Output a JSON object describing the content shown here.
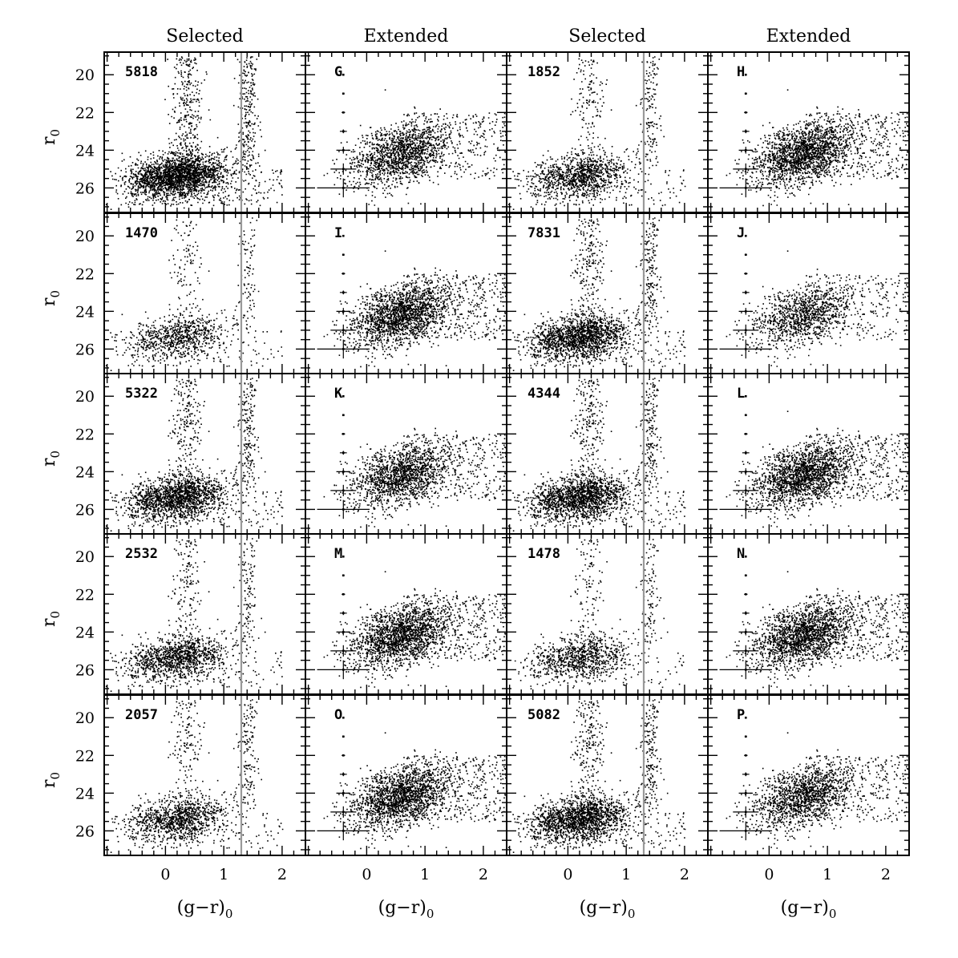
{
  "figure": {
    "column_titles": [
      "Selected",
      "Extended",
      "Selected",
      "Extended"
    ],
    "xlabel": "(g−r)",
    "xlabel_sub": "0",
    "ylabel": "r",
    "ylabel_sub": "0",
    "x_tick_labels": [
      "0",
      "1",
      "2"
    ],
    "y_tick_labels": [
      "20",
      "22",
      "24",
      "26"
    ]
  },
  "chart_data": {
    "type": "scatter",
    "title": "",
    "xlabel": "(g−r)0",
    "ylabel": "r0",
    "xlim": [
      -1.05,
      2.4
    ],
    "ylim": [
      27.3,
      18.8
    ],
    "x_ticks": [
      0,
      1,
      2
    ],
    "y_ticks": [
      20,
      22,
      24,
      26
    ],
    "y_axis_inverted": true,
    "grid": false,
    "selection_color_cut": 1.3,
    "point_color": "#000000",
    "cut_line_color": "#999999",
    "panels": [
      {
        "row": 0,
        "col": 0,
        "label": "5818",
        "kind": "selected",
        "approx_points": 3000,
        "density": "high"
      },
      {
        "row": 0,
        "col": 1,
        "label": "G",
        "kind": "extended",
        "approx_points": 1800,
        "density": "medium"
      },
      {
        "row": 0,
        "col": 2,
        "label": "1852",
        "kind": "selected",
        "approx_points": 1500,
        "density": "low"
      },
      {
        "row": 0,
        "col": 3,
        "label": "H",
        "kind": "extended",
        "approx_points": 2600,
        "density": "medium"
      },
      {
        "row": 1,
        "col": 0,
        "label": "1470",
        "kind": "selected",
        "approx_points": 1100,
        "density": "low"
      },
      {
        "row": 1,
        "col": 1,
        "label": "I",
        "kind": "extended",
        "approx_points": 2500,
        "density": "medium"
      },
      {
        "row": 1,
        "col": 2,
        "label": "7831",
        "kind": "selected",
        "approx_points": 4200,
        "density": "high"
      },
      {
        "row": 1,
        "col": 3,
        "label": "J",
        "kind": "extended",
        "approx_points": 1400,
        "density": "low"
      },
      {
        "row": 2,
        "col": 0,
        "label": "5322",
        "kind": "selected",
        "approx_points": 3400,
        "density": "high"
      },
      {
        "row": 2,
        "col": 1,
        "label": "K",
        "kind": "extended",
        "approx_points": 1900,
        "density": "medium"
      },
      {
        "row": 2,
        "col": 2,
        "label": "4344",
        "kind": "selected",
        "approx_points": 2800,
        "density": "high"
      },
      {
        "row": 2,
        "col": 3,
        "label": "L",
        "kind": "extended",
        "approx_points": 2300,
        "density": "medium"
      },
      {
        "row": 3,
        "col": 0,
        "label": "2532",
        "kind": "selected",
        "approx_points": 1600,
        "density": "medium"
      },
      {
        "row": 3,
        "col": 1,
        "label": "M",
        "kind": "extended",
        "approx_points": 2700,
        "density": "medium"
      },
      {
        "row": 3,
        "col": 2,
        "label": "1478",
        "kind": "selected",
        "approx_points": 1200,
        "density": "low"
      },
      {
        "row": 3,
        "col": 3,
        "label": "N",
        "kind": "extended",
        "approx_points": 2500,
        "density": "medium"
      },
      {
        "row": 4,
        "col": 0,
        "label": "2057",
        "kind": "selected",
        "approx_points": 1500,
        "density": "medium"
      },
      {
        "row": 4,
        "col": 1,
        "label": "O",
        "kind": "extended",
        "approx_points": 2600,
        "density": "medium"
      },
      {
        "row": 4,
        "col": 2,
        "label": "5082",
        "kind": "selected",
        "approx_points": 3200,
        "density": "high"
      },
      {
        "row": 4,
        "col": 3,
        "label": "P",
        "kind": "extended",
        "approx_points": 1800,
        "density": "medium"
      }
    ],
    "error_bars": {
      "x_center": -0.4,
      "r_levels": [
        20,
        21,
        22,
        23,
        24,
        25,
        26
      ],
      "half_width_g_minus_r": [
        0.01,
        0.02,
        0.03,
        0.06,
        0.12,
        0.22,
        0.45
      ],
      "half_height_r": [
        0.02,
        0.03,
        0.05,
        0.1,
        0.18,
        0.3,
        0.5
      ]
    }
  }
}
